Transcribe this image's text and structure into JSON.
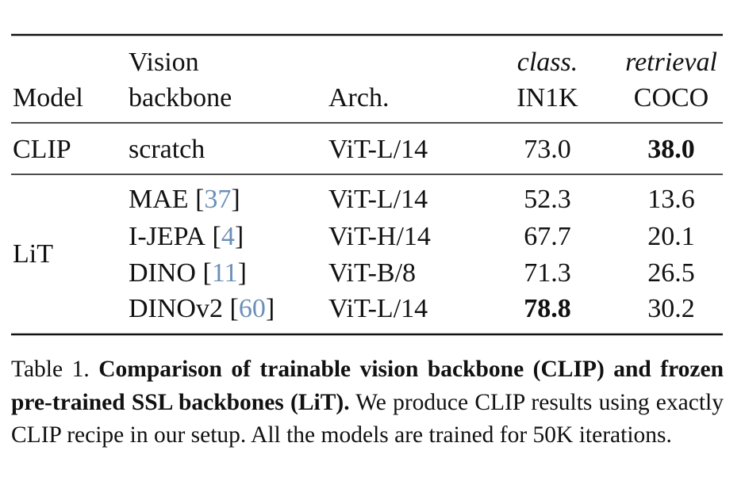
{
  "header": {
    "model": "Model",
    "backbone": [
      "Vision",
      "backbone"
    ],
    "arch": "Arch.",
    "in1k": [
      "class.",
      "IN1K"
    ],
    "coco": [
      "retrieval",
      "COCO"
    ]
  },
  "groups": [
    {
      "model": "CLIP",
      "rows": [
        {
          "backbone": "scratch",
          "cite": null,
          "arch": "ViT-L/14",
          "in1k": "73.0",
          "coco": "38.0",
          "bold": [
            "coco"
          ]
        }
      ]
    },
    {
      "model": "LiT",
      "rows": [
        {
          "backbone": "MAE",
          "cite": [
            "[",
            "37",
            "]"
          ],
          "arch": "ViT-L/14",
          "in1k": "52.3",
          "coco": "13.6",
          "bold": []
        },
        {
          "backbone": "I-JEPA",
          "cite": [
            "[",
            "4",
            "]"
          ],
          "arch": "ViT-H/14",
          "in1k": "67.7",
          "coco": "20.1",
          "bold": []
        },
        {
          "backbone": "DINO",
          "cite": [
            "[",
            "11",
            "]"
          ],
          "arch": "ViT-B/8",
          "in1k": "71.3",
          "coco": "26.5",
          "bold": []
        },
        {
          "backbone": "DINOv2",
          "cite": [
            "[",
            "60",
            "]"
          ],
          "arch": "ViT-L/14",
          "in1k": "78.8",
          "coco": "30.2",
          "bold": [
            "in1k"
          ]
        }
      ]
    }
  ],
  "caption": {
    "label": "Table 1.",
    "bold": "Comparison of trainable vision backbone (CLIP) and frozen pre-trained SSL backbones (LiT).",
    "text": "We produce CLIP results using exactly CLIP recipe in our setup. All the models are trained for 50K iterations."
  }
}
